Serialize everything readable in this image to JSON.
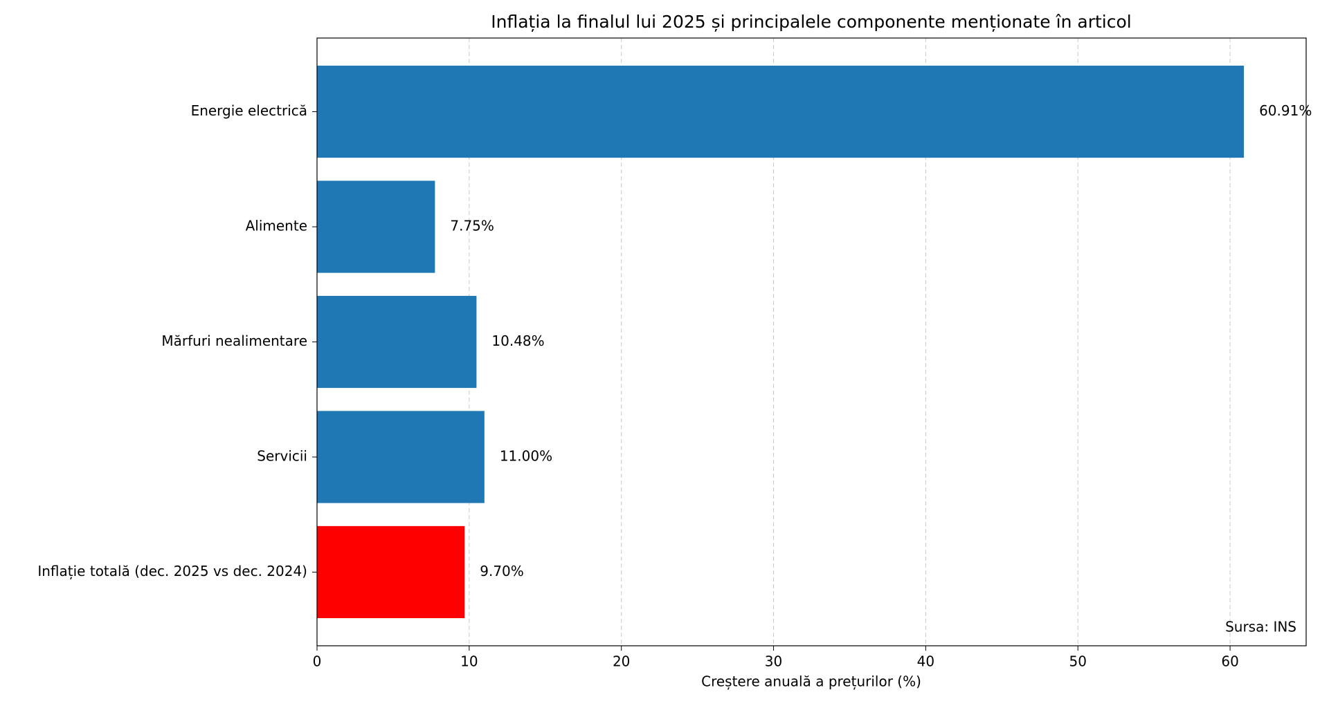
{
  "chart_data": {
    "type": "barh",
    "title": "Inflația la finalul lui 2025 și principalele componente menționate în articol",
    "xlabel": "Creștere anuală a prețurilor (%)",
    "annotation": "Sursa: INS",
    "categories": [
      "Energie electrică",
      "Alimente",
      "Mărfuri nealimentare",
      "Servicii",
      "Inflație totală (dec. 2025 vs dec. 2024)"
    ],
    "values": [
      60.91,
      7.75,
      10.48,
      11.0,
      9.7
    ],
    "value_labels": [
      "60.91%",
      "7.75%",
      "10.48%",
      "11.00%",
      "9.70%"
    ],
    "colors": [
      "#1f77b4",
      "#1f77b4",
      "#1f77b4",
      "#1f77b4",
      "#ff0000"
    ],
    "xlim": [
      0,
      65
    ],
    "xticks": [
      0,
      10,
      20,
      30,
      40,
      50,
      60
    ],
    "grid": true
  }
}
